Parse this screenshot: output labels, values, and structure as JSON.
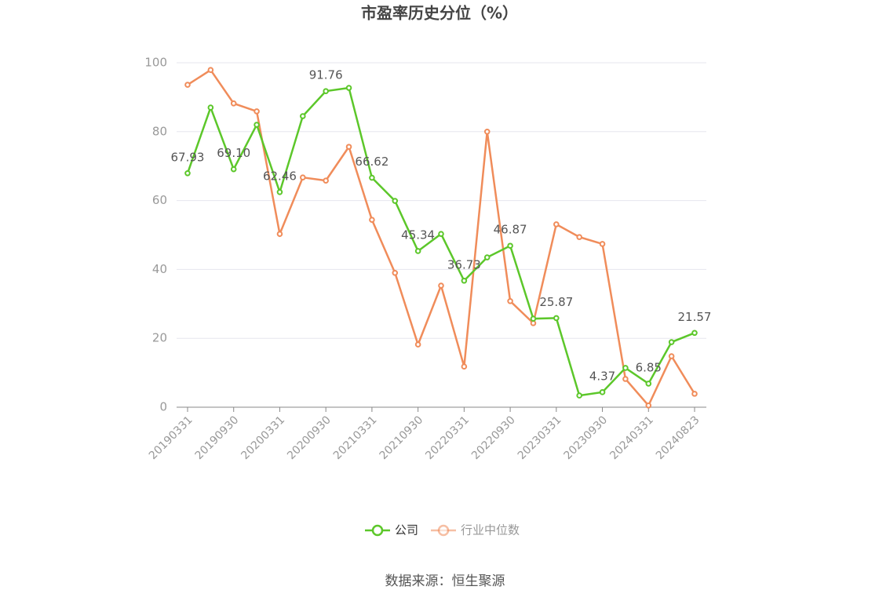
{
  "chart_data": {
    "type": "line",
    "title": "市盈率历史分位（%）",
    "categories": [
      "20190331",
      null,
      "20190930",
      null,
      "20200331",
      null,
      "20200930",
      null,
      "20210331",
      null,
      "20210930",
      null,
      "20220331",
      null,
      "20220930",
      null,
      "20230331",
      null,
      "20230930",
      null,
      "20240331",
      null,
      "20240823"
    ],
    "series": [
      {
        "name": "公司",
        "color": "#5cc72a",
        "values": [
          67.93,
          87.0,
          69.1,
          82.0,
          62.46,
          84.5,
          91.76,
          92.7,
          66.62,
          59.9,
          45.34,
          50.3,
          36.73,
          43.5,
          46.87,
          25.7,
          25.87,
          3.4,
          4.37,
          11.4,
          6.85,
          18.9,
          21.57
        ],
        "value_labels": [
          "67.93",
          null,
          "69.10",
          null,
          "62.46",
          null,
          "91.76",
          null,
          "66.62",
          null,
          "45.34",
          null,
          "36.73",
          null,
          "46.87",
          null,
          "25.87",
          null,
          "4.37",
          null,
          "6.85",
          null,
          "21.57"
        ]
      },
      {
        "name": "行业中位数",
        "color": "#f08c5a",
        "values": [
          93.6,
          97.9,
          88.2,
          85.9,
          50.3,
          66.7,
          65.8,
          75.6,
          54.4,
          39.0,
          18.2,
          35.3,
          11.8,
          80.0,
          30.8,
          24.4,
          53.1,
          49.4,
          47.4,
          8.2,
          0.5,
          14.8,
          3.9
        ]
      }
    ],
    "ylim": [
      0,
      100
    ],
    "yticks": [
      0,
      20,
      40,
      60,
      80,
      100
    ],
    "grid": true,
    "legend": "bottom",
    "source": "数据来源：恒生聚源"
  }
}
